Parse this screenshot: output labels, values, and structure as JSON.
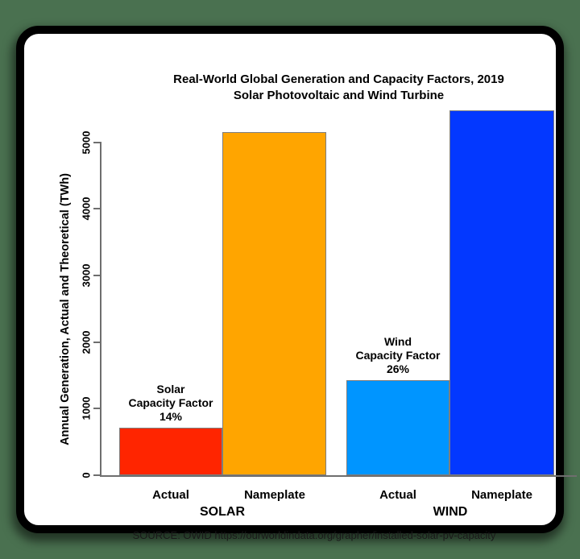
{
  "frame": {
    "background_color": "#4a7150",
    "card_background": "#ffffff",
    "card_border_color": "#000000",
    "axis_color": "#6e6e6e"
  },
  "chart_data": {
    "type": "bar",
    "title": "Real-World Global Generation and Capacity Factors, 2019",
    "subtitle": "Solar Photovoltaic and Wind Turbine",
    "ylabel": "Annual Generation, Actual and Theoretical (TWh)",
    "xlabel": "",
    "ylim": [
      0,
      5500
    ],
    "yticks": [
      0,
      1000,
      2000,
      3000,
      4000,
      5000
    ],
    "grid": false,
    "legend": false,
    "categories": [
      "SOLAR Actual",
      "SOLAR Nameplate",
      "WIND Actual",
      "WIND Nameplate"
    ],
    "values": [
      720,
      5150,
      1430,
      5480
    ],
    "groups": [
      {
        "label": "SOLAR",
        "annotation": [
          "Solar",
          "Capacity Factor",
          "14%"
        ],
        "bars": [
          {
            "label": "Actual",
            "value": 720,
            "color": "#ff2500"
          },
          {
            "label": "Nameplate",
            "value": 5150,
            "color": "#ffa500"
          }
        ]
      },
      {
        "label": "WIND",
        "annotation": [
          "Wind",
          "Capacity Factor",
          "26%"
        ],
        "bars": [
          {
            "label": "Actual",
            "value": 1430,
            "color": "#0095ff"
          },
          {
            "label": "Nameplate",
            "value": 5480,
            "color": "#0338ff"
          }
        ]
      }
    ],
    "source": "SOURCE: OWID https://ourworldindata.org/grapher/installed-solar-pv-capacity"
  }
}
